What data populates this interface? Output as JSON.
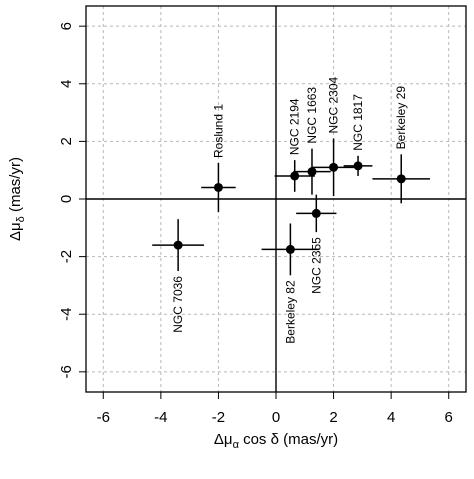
{
  "chart_data": {
    "type": "scatter",
    "title": "",
    "xlabel_parts": {
      "delta": "Δμ",
      "sub": "α",
      "rest": " cos δ (mas/yr)"
    },
    "ylabel_parts": {
      "delta": "Δμ",
      "sub": "δ",
      "rest": " (mas/yr)"
    },
    "xlim": [
      -6.6,
      6.6
    ],
    "ylim": [
      -6.7,
      6.7
    ],
    "xticks": [
      -6,
      -4,
      -2,
      0,
      2,
      4,
      6
    ],
    "yticks": [
      -6,
      -4,
      -2,
      0,
      2,
      4,
      6
    ],
    "xtick_labels": [
      "-6",
      "-4",
      "-2",
      "0",
      "2",
      "4",
      "6"
    ],
    "ytick_labels": [
      "-6",
      "-4",
      "-2",
      "0",
      "2",
      "4",
      "6"
    ],
    "grid": true,
    "zero_lines": true,
    "points": [
      {
        "label": "NGC 7036",
        "x": -3.4,
        "y": -1.6,
        "xerr": 0.9,
        "yerr": 0.9,
        "label_dir": "down"
      },
      {
        "label": "Roslund 1",
        "x": -2.0,
        "y": 0.4,
        "xerr": 0.6,
        "yerr": 0.85,
        "label_dir": "up"
      },
      {
        "label": "Berkeley 82",
        "x": 0.5,
        "y": -1.75,
        "xerr": 1.0,
        "yerr": 0.9,
        "label_dir": "down"
      },
      {
        "label": "NGC 2355",
        "x": 1.4,
        "y": -0.5,
        "xerr": 0.7,
        "yerr": 0.65,
        "label_dir": "down"
      },
      {
        "label": "NGC 2194",
        "x": 0.65,
        "y": 0.8,
        "xerr": 0.7,
        "yerr": 0.55,
        "label_dir": "up"
      },
      {
        "label": "NGC 1663",
        "x": 1.25,
        "y": 0.95,
        "xerr": 0.65,
        "yerr": 0.8,
        "label_dir": "up"
      },
      {
        "label": "NGC 2304",
        "x": 2.0,
        "y": 1.1,
        "xerr": 0.75,
        "yerr": 1.0,
        "label_dir": "up"
      },
      {
        "label": "NGC 1817",
        "x": 2.85,
        "y": 1.15,
        "xerr": 0.5,
        "yerr": 0.35,
        "label_dir": "up"
      },
      {
        "label": "Berkeley 29",
        "x": 4.35,
        "y": 0.7,
        "xerr": 1.0,
        "yerr": 0.85,
        "label_dir": "up"
      }
    ]
  }
}
